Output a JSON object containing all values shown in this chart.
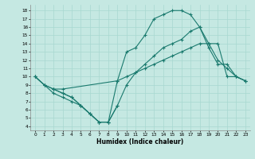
{
  "xlabel": "Humidex (Indice chaleur)",
  "background_color": "#c5e8e2",
  "grid_color": "#a8d8d0",
  "line_color": "#1a7a6e",
  "xlim": [
    -0.5,
    23.5
  ],
  "ylim": [
    3.5,
    18.7
  ],
  "xticks": [
    0,
    1,
    2,
    3,
    4,
    5,
    6,
    7,
    8,
    9,
    10,
    11,
    12,
    13,
    14,
    15,
    16,
    17,
    18,
    19,
    20,
    21,
    22,
    23
  ],
  "yticks": [
    4,
    5,
    6,
    7,
    8,
    9,
    10,
    11,
    12,
    13,
    14,
    15,
    16,
    17,
    18
  ],
  "line1_x": [
    0,
    1,
    2,
    3,
    4,
    5,
    6,
    7,
    8,
    9,
    10,
    11,
    12,
    13,
    14,
    15,
    16,
    17,
    18,
    19,
    20,
    21,
    22,
    23
  ],
  "line1_y": [
    10,
    9,
    8,
    7.5,
    7,
    6.5,
    5.5,
    4.5,
    4.5,
    9.5,
    13,
    13.5,
    15,
    17,
    17.5,
    18,
    18,
    17.5,
    16,
    14,
    12,
    11,
    10,
    9.5
  ],
  "line2_x": [
    0,
    1,
    2,
    3,
    9,
    10,
    11,
    12,
    13,
    14,
    15,
    16,
    17,
    18,
    19,
    20,
    21,
    22,
    23
  ],
  "line2_y": [
    10,
    9,
    8.5,
    8.5,
    9.5,
    10,
    10.5,
    11,
    11.5,
    12,
    12.5,
    13,
    13.5,
    14,
    14,
    14,
    10,
    10,
    9.5
  ],
  "line3_x": [
    0,
    1,
    2,
    3,
    4,
    5,
    6,
    7,
    8,
    9,
    10,
    11,
    12,
    13,
    14,
    15,
    16,
    17,
    18,
    19,
    20,
    21,
    22,
    23
  ],
  "line3_y": [
    10,
    9,
    8.5,
    8,
    7.5,
    6.5,
    5.5,
    4.5,
    4.5,
    6.5,
    9.0,
    10.5,
    11.5,
    12.5,
    13.5,
    14.0,
    14.5,
    15.5,
    16.0,
    13.5,
    11.5,
    11.5,
    10,
    9.5
  ],
  "line4_x": [
    2,
    3,
    4,
    5,
    6,
    7,
    8,
    9
  ],
  "line4_y": [
    8.5,
    8,
    7.5,
    6.5,
    5.5,
    4.5,
    4.5,
    6.5
  ]
}
